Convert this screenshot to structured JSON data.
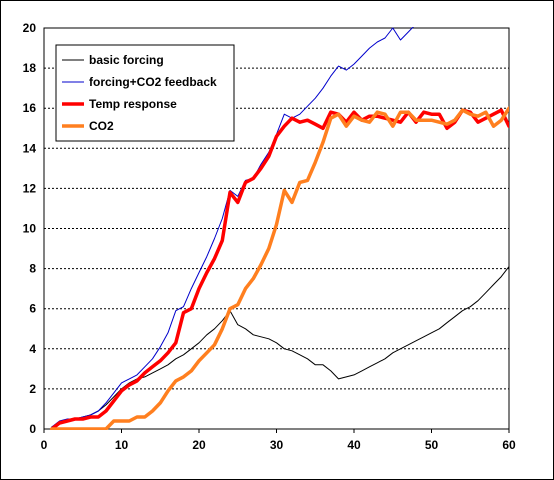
{
  "chart_data": {
    "type": "line",
    "title": "",
    "xlabel": "",
    "ylabel": "",
    "xlim": [
      0,
      60
    ],
    "ylim": [
      0,
      20
    ],
    "x_ticks": [
      "0",
      "10",
      "20",
      "30",
      "40",
      "50",
      "60"
    ],
    "y_ticks": [
      "0",
      "2",
      "4",
      "6",
      "8",
      "10",
      "12",
      "14",
      "16",
      "18",
      "20"
    ],
    "grid": "horizontal-dashed",
    "legend_position": "top-left",
    "series": [
      {
        "name": "basic forcing",
        "color": "#000000",
        "width": "thin",
        "x": [
          1,
          2,
          3,
          4,
          5,
          6,
          7,
          8,
          9,
          10,
          11,
          12,
          13,
          14,
          15,
          16,
          17,
          18,
          19,
          20,
          21,
          22,
          23,
          24,
          25,
          26,
          27,
          28,
          29,
          30,
          31,
          32,
          33,
          34,
          35,
          36,
          37,
          38,
          39,
          40,
          41,
          42,
          43,
          44,
          45,
          46,
          47,
          48,
          49,
          50,
          51,
          52,
          53,
          54,
          55,
          56,
          57,
          58,
          59,
          60
        ],
        "y": [
          0.1,
          0.3,
          0.4,
          0.5,
          0.6,
          0.7,
          0.9,
          1.2,
          1.6,
          2.0,
          2.3,
          2.5,
          2.6,
          2.8,
          3.0,
          3.2,
          3.5,
          3.7,
          4.0,
          4.3,
          4.7,
          5.0,
          5.4,
          5.9,
          5.2,
          5.0,
          4.7,
          4.6,
          4.5,
          4.3,
          4.0,
          3.9,
          3.7,
          3.5,
          3.2,
          3.2,
          2.9,
          2.5,
          2.6,
          2.7,
          2.9,
          3.1,
          3.3,
          3.5,
          3.8,
          4.0,
          4.2,
          4.4,
          4.6,
          4.8,
          5.0,
          5.3,
          5.6,
          5.9,
          6.1,
          6.4,
          6.8,
          7.2,
          7.6,
          8.1
        ]
      },
      {
        "name": "forcing+CO2 feedback",
        "color": "#0000cc",
        "width": "thin",
        "x": [
          1,
          2,
          3,
          4,
          5,
          6,
          7,
          8,
          9,
          10,
          11,
          12,
          13,
          14,
          15,
          16,
          17,
          18,
          19,
          20,
          21,
          22,
          23,
          24,
          25,
          26,
          27,
          28,
          29,
          30,
          31,
          32,
          33,
          34,
          35,
          36,
          37,
          38,
          39,
          40,
          41,
          42,
          43,
          44,
          45,
          46,
          47,
          48
        ],
        "y": [
          0.1,
          0.4,
          0.5,
          0.5,
          0.6,
          0.7,
          0.9,
          1.3,
          1.8,
          2.3,
          2.5,
          2.7,
          3.1,
          3.5,
          4.1,
          4.8,
          5.9,
          6.1,
          7.0,
          7.8,
          8.6,
          9.5,
          10.5,
          11.9,
          11.6,
          12.4,
          12.5,
          13.2,
          13.8,
          14.7,
          15.7,
          15.5,
          15.7,
          16.1,
          16.5,
          17.0,
          17.6,
          18.1,
          17.9,
          18.2,
          18.6,
          19.0,
          19.3,
          19.5,
          20.0,
          19.4,
          19.8,
          20.2
        ]
      },
      {
        "name": "Temp response",
        "color": "#ff0000",
        "width": "thick",
        "x": [
          1,
          2,
          3,
          4,
          5,
          6,
          7,
          8,
          9,
          10,
          11,
          12,
          13,
          14,
          15,
          16,
          17,
          18,
          19,
          20,
          21,
          22,
          23,
          24,
          25,
          26,
          27,
          28,
          29,
          30,
          31,
          32,
          33,
          34,
          35,
          36,
          37,
          38,
          39,
          40,
          41,
          42,
          43,
          44,
          45,
          46,
          47,
          48,
          49,
          50,
          51,
          52,
          53,
          54,
          55,
          56,
          57,
          58,
          59,
          60
        ],
        "y": [
          0.0,
          0.3,
          0.4,
          0.5,
          0.5,
          0.6,
          0.6,
          0.9,
          1.4,
          1.9,
          2.2,
          2.4,
          2.8,
          3.1,
          3.4,
          3.8,
          4.3,
          5.8,
          6.0,
          7.0,
          7.8,
          8.5,
          9.4,
          11.8,
          11.3,
          12.3,
          12.5,
          13.0,
          13.6,
          14.6,
          15.1,
          15.5,
          15.3,
          15.4,
          15.2,
          15.0,
          15.8,
          15.7,
          15.3,
          15.8,
          15.4,
          15.6,
          15.6,
          15.5,
          15.4,
          15.3,
          15.8,
          15.3,
          15.8,
          15.7,
          15.7,
          15.0,
          15.3,
          15.9,
          15.8,
          15.3,
          15.5,
          15.7,
          15.9,
          15.1
        ]
      },
      {
        "name": "CO2",
        "color": "#ff7f1f",
        "width": "thick",
        "x": [
          1,
          2,
          3,
          4,
          5,
          6,
          7,
          8,
          9,
          10,
          11,
          12,
          13,
          14,
          15,
          16,
          17,
          18,
          19,
          20,
          21,
          22,
          23,
          24,
          25,
          26,
          27,
          28,
          29,
          30,
          31,
          32,
          33,
          34,
          35,
          36,
          37,
          38,
          39,
          40,
          41,
          42,
          43,
          44,
          45,
          46,
          47,
          48,
          49,
          50,
          51,
          52,
          53,
          54,
          55,
          56,
          57,
          58,
          59,
          60
        ],
        "y": [
          0,
          0,
          0,
          0,
          0,
          0,
          0,
          0,
          0.4,
          0.4,
          0.4,
          0.6,
          0.6,
          0.9,
          1.3,
          1.9,
          2.4,
          2.6,
          2.9,
          3.4,
          3.8,
          4.2,
          5.0,
          6.0,
          6.2,
          7.0,
          7.5,
          8.2,
          9.0,
          10.2,
          11.9,
          11.3,
          12.3,
          12.4,
          13.3,
          14.3,
          15.5,
          15.7,
          15.1,
          15.6,
          15.4,
          15.3,
          15.8,
          15.7,
          15.1,
          15.8,
          15.8,
          15.4,
          15.4,
          15.4,
          15.3,
          15.2,
          15.4,
          15.9,
          15.7,
          15.6,
          15.8,
          15.1,
          15.4,
          16.0
        ]
      }
    ]
  }
}
